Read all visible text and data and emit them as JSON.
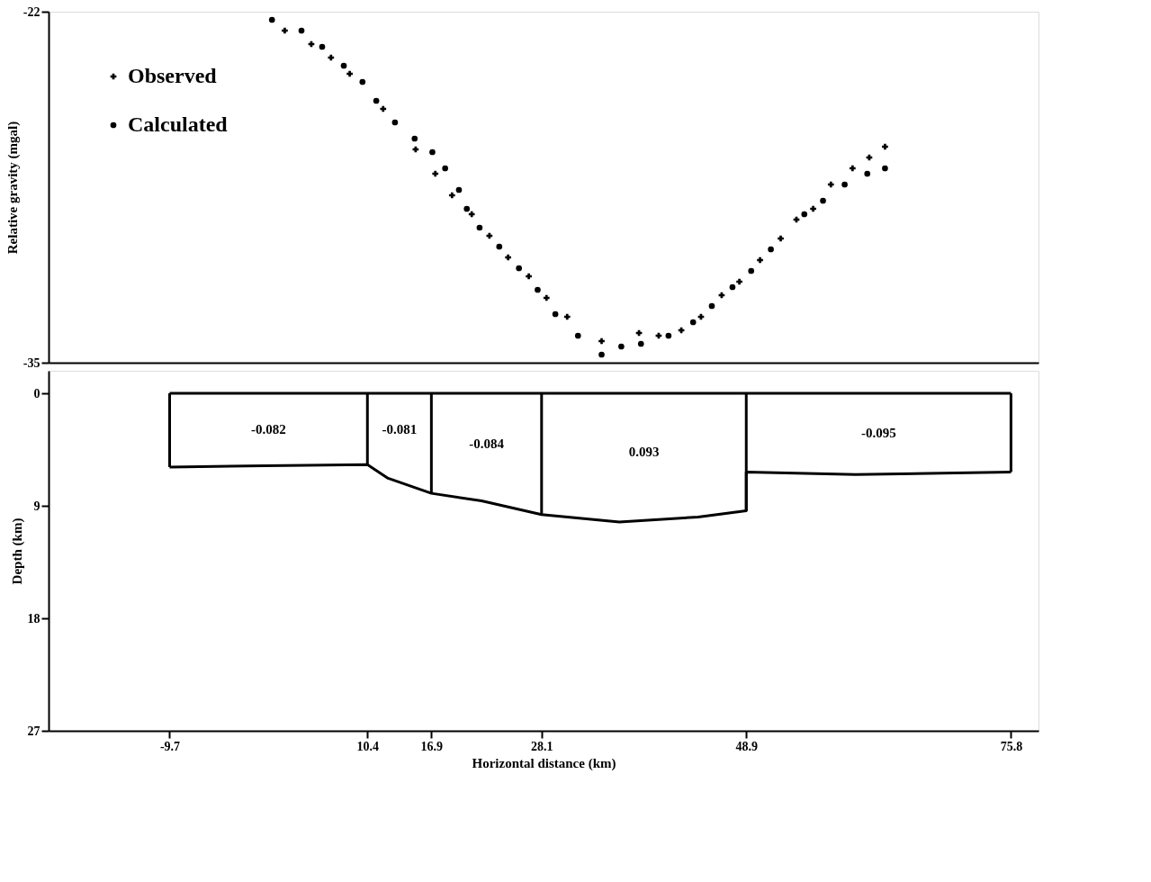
{
  "chart_data": [
    {
      "type": "scatter",
      "ylabel": "Relative gravity (mgal)",
      "xlim": [
        -22,
        78.6
      ],
      "ylim": [
        -35,
        -22
      ],
      "yticks": [
        -35,
        -22
      ],
      "tick_labels": "y",
      "legend": "top left",
      "series": [
        {
          "name": "Observed",
          "color": "#000000",
          "marker": "cross",
          "x": [
            2.0,
            4.7,
            6.7,
            8.6,
            12.0,
            15.3,
            17.3,
            19.0,
            21.0,
            22.8,
            24.7,
            26.8,
            28.6,
            30.7,
            34.2,
            38.0,
            40.0,
            42.3,
            44.3,
            46.4,
            48.2,
            50.3,
            52.4,
            54.0,
            55.7,
            57.5,
            59.7,
            61.4,
            63.0
          ],
          "values": [
            -22.7,
            -23.2,
            -23.7,
            -24.3,
            -25.6,
            -27.1,
            -28.0,
            -28.8,
            -29.5,
            -30.3,
            -31.1,
            -31.8,
            -32.6,
            -33.3,
            -34.2,
            -33.9,
            -34.0,
            -33.8,
            -33.3,
            -32.5,
            -32.0,
            -31.2,
            -30.4,
            -29.7,
            -29.3,
            -28.4,
            -27.8,
            -27.4,
            -27.0
          ]
        },
        {
          "name": "Calculated",
          "color": "#000000",
          "marker": "circle",
          "x": [
            0.7,
            3.7,
            5.8,
            8.0,
            9.9,
            11.3,
            13.2,
            15.2,
            17.0,
            18.3,
            19.7,
            20.5,
            21.8,
            23.8,
            25.8,
            27.7,
            29.5,
            31.8,
            34.2,
            36.2,
            38.2,
            41.0,
            43.5,
            45.4,
            47.5,
            49.4,
            51.4,
            54.8,
            56.7,
            58.9,
            61.2,
            63.0
          ],
          "values": [
            -22.3,
            -22.7,
            -23.3,
            -24.0,
            -24.6,
            -25.3,
            -26.1,
            -26.7,
            -27.2,
            -27.8,
            -28.6,
            -29.3,
            -30.0,
            -30.7,
            -31.5,
            -32.3,
            -33.2,
            -34.0,
            -34.7,
            -34.4,
            -34.3,
            -34.0,
            -33.5,
            -32.9,
            -32.2,
            -31.6,
            -30.8,
            -29.5,
            -29.0,
            -28.4,
            -28.0,
            -27.8
          ]
        }
      ]
    },
    {
      "type": "line",
      "xlabel": "Horizontal distance (km)",
      "ylabel": "Depth (km)",
      "xlim": [
        -22,
        78.6
      ],
      "xticks": [
        -9.7,
        10.4,
        16.9,
        28.1,
        48.9,
        75.8
      ],
      "ylim": [
        27,
        -1.8
      ],
      "yticks": [
        0,
        9,
        18,
        27
      ],
      "series": [
        {
          "color": "#000000",
          "x": [
            -9.7,
            75.8
          ],
          "values": [
            0,
            0
          ]
        },
        {
          "color": "#000000",
          "x": [
            -9.7,
            0,
            10.4,
            12.5,
            16.9,
            22,
            28.1,
            36,
            44,
            48.9,
            48.9,
            60,
            75.8
          ],
          "values": [
            5.9,
            5.8,
            5.7,
            6.8,
            8.0,
            8.6,
            9.7,
            10.3,
            9.9,
            9.4,
            6.3,
            6.5,
            6.3
          ]
        },
        {
          "color": "#000000",
          "x": [
            -9.7,
            -9.7
          ],
          "values": [
            0,
            5.9
          ]
        },
        {
          "color": "#000000",
          "x": [
            10.4,
            10.4
          ],
          "values": [
            0,
            5.7
          ]
        },
        {
          "color": "#000000",
          "x": [
            16.9,
            16.9
          ],
          "values": [
            0,
            8.0
          ]
        },
        {
          "color": "#000000",
          "x": [
            28.1,
            28.1
          ],
          "values": [
            0,
            9.7
          ]
        },
        {
          "color": "#000000",
          "x": [
            48.9,
            48.9
          ],
          "values": [
            0,
            9.4
          ]
        },
        {
          "color": "#000000",
          "x": [
            75.8,
            75.8
          ],
          "values": [
            0,
            6.3
          ]
        }
      ],
      "annotations": [
        "-0.082",
        "-0.081",
        "-0.084",
        "0.093",
        "-0.095"
      ]
    }
  ]
}
